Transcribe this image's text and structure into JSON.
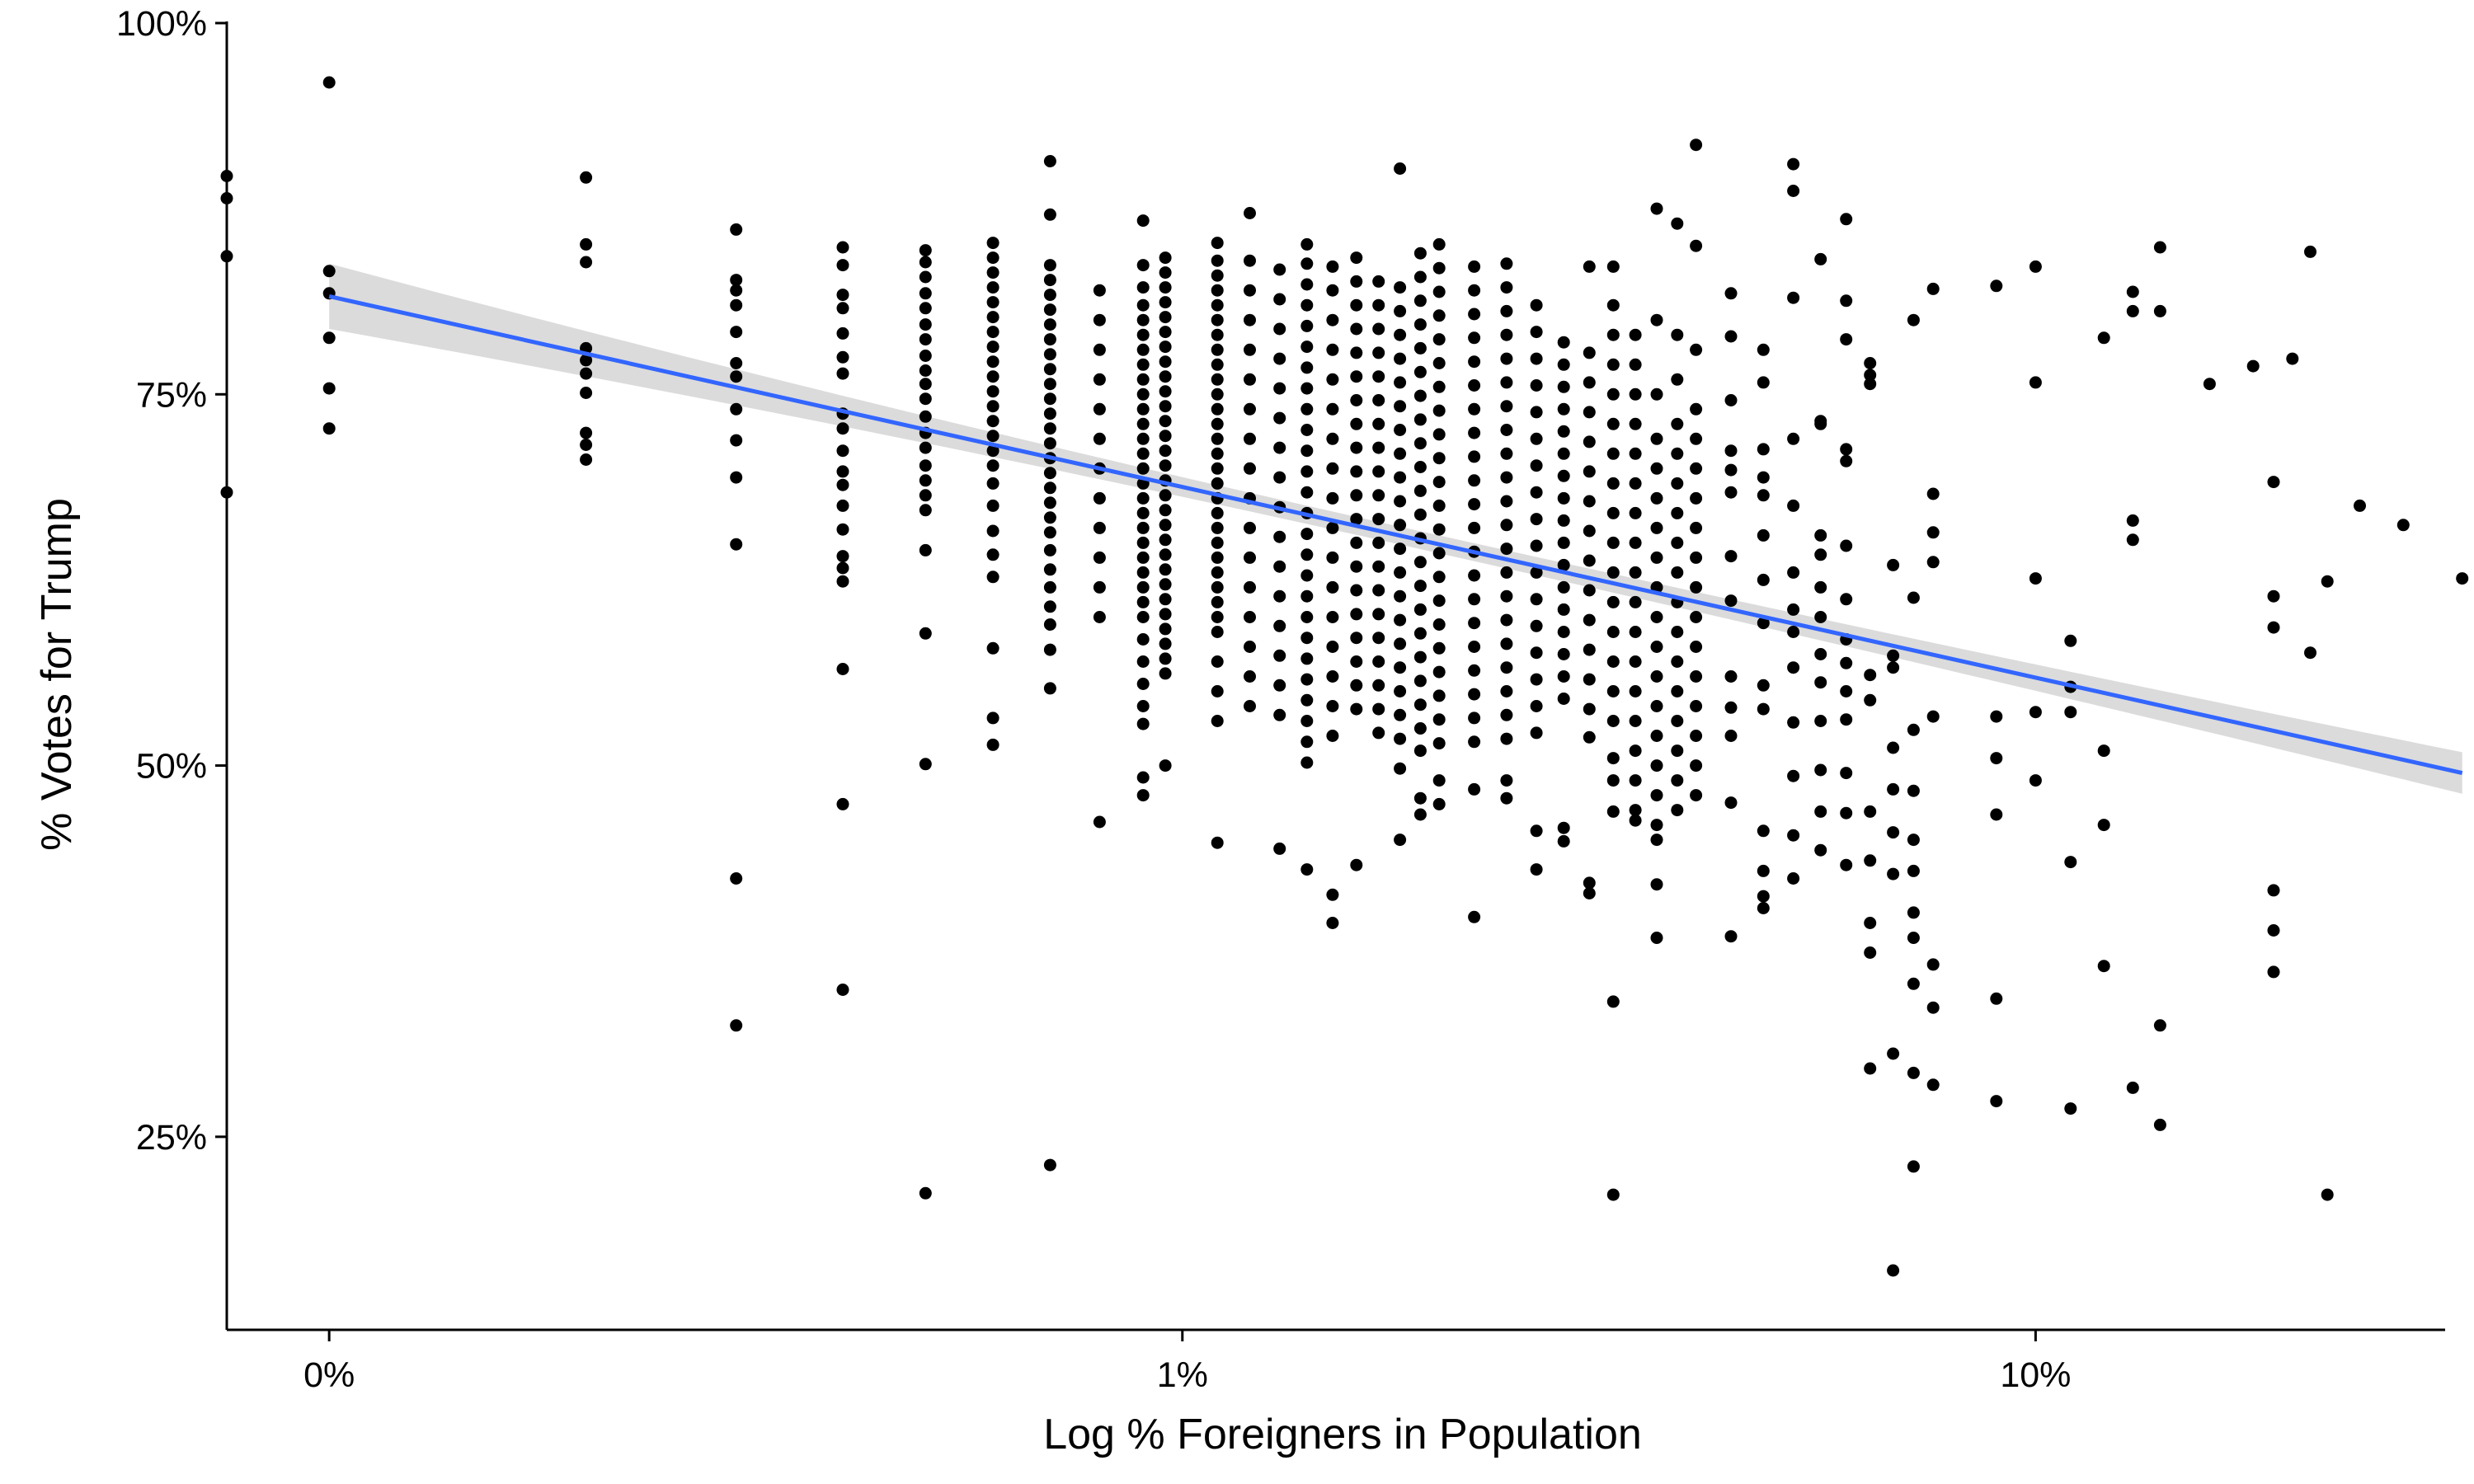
{
  "chart_data": {
    "type": "scatter",
    "title": "",
    "xlabel": "Log % Foreigners in Population",
    "ylabel": "% Votes for Trump",
    "x_scale": "log10",
    "x_domain": [
      -0.12,
      2.48
    ],
    "y_domain": [
      0.12,
      1.0
    ],
    "x_ticks": [
      {
        "value": 0,
        "label": "0%"
      },
      {
        "value": 1,
        "label": "1%"
      },
      {
        "value": 2,
        "label": "10%"
      }
    ],
    "y_ticks": [
      {
        "value": 0.25,
        "label": "25%"
      },
      {
        "value": 0.5,
        "label": "50%"
      },
      {
        "value": 0.75,
        "label": "75%"
      },
      {
        "value": 1.0,
        "label": "100%"
      }
    ],
    "grid": false,
    "legend": "none",
    "colors": {
      "points": "#000000",
      "trend_line": "#3366FF",
      "confidence_band": "#D9D9D9"
    },
    "trend": {
      "method": "linear",
      "x": [
        0.0,
        2.5
      ],
      "y": [
        0.816,
        0.495
      ],
      "ci_halfwidth_ends": [
        0.022,
        0.014
      ],
      "ci_halfwidth_mid": 0.006
    },
    "columns": [
      {
        "x": -0.12,
        "y": [
          0.897,
          0.882,
          0.843,
          0.684
        ]
      },
      {
        "x": 0.0,
        "y": [
          0.96,
          0.833,
          0.818,
          0.788,
          0.754,
          0.727
        ]
      },
      {
        "x": 0.301,
        "y": [
          0.896,
          0.851,
          0.839,
          0.781,
          0.773,
          0.764,
          0.751,
          0.724,
          0.716,
          0.706
        ]
      },
      {
        "x": 0.477,
        "y": [
          0.861,
          0.827,
          0.82,
          0.81,
          0.792,
          0.771,
          0.762,
          0.74,
          0.719,
          0.694,
          0.649,
          0.424,
          0.325
        ]
      },
      {
        "x": 0.602,
        "y": [
          0.849,
          0.837,
          0.817,
          0.808,
          0.791,
          0.775,
          0.764,
          0.737,
          0.727,
          0.712,
          0.698,
          0.689,
          0.675,
          0.659,
          0.641,
          0.633,
          0.624,
          0.565,
          0.474,
          0.349
        ]
      },
      {
        "x": 0.699,
        "y": [
          0.847,
          0.839,
          0.829,
          0.818,
          0.808,
          0.797,
          0.787,
          0.776,
          0.766,
          0.757,
          0.747,
          0.735,
          0.724,
          0.714,
          0.702,
          0.692,
          0.682,
          0.672,
          0.645,
          0.589,
          0.501,
          0.212
        ]
      },
      {
        "x": 0.778,
        "y": [
          0.852,
          0.842,
          0.832,
          0.822,
          0.812,
          0.802,
          0.792,
          0.782,
          0.772,
          0.762,
          0.752,
          0.742,
          0.732,
          0.722,
          0.712,
          0.702,
          0.69,
          0.675,
          0.658,
          0.642,
          0.627,
          0.579,
          0.532,
          0.514
        ]
      },
      {
        "x": 0.845,
        "y": [
          0.907,
          0.871,
          0.837,
          0.827,
          0.817,
          0.807,
          0.797,
          0.787,
          0.777,
          0.767,
          0.757,
          0.747,
          0.737,
          0.727,
          0.717,
          0.707,
          0.697,
          0.687,
          0.677,
          0.667,
          0.657,
          0.645,
          0.632,
          0.62,
          0.607,
          0.595,
          0.578,
          0.552,
          0.231
        ]
      },
      {
        "x": 0.903,
        "y": [
          0.82,
          0.8,
          0.78,
          0.76,
          0.74,
          0.72,
          0.7,
          0.68,
          0.66,
          0.64,
          0.62,
          0.6,
          0.462
        ]
      },
      {
        "x": 0.954,
        "y": [
          0.867,
          0.837,
          0.822,
          0.81,
          0.8,
          0.79,
          0.78,
          0.77,
          0.76,
          0.75,
          0.74,
          0.73,
          0.72,
          0.71,
          0.7,
          0.69,
          0.68,
          0.67,
          0.66,
          0.65,
          0.64,
          0.63,
          0.62,
          0.61,
          0.6,
          0.585,
          0.57,
          0.555,
          0.54,
          0.528,
          0.492,
          0.48
        ]
      },
      {
        "x": 0.98,
        "y": [
          0.842,
          0.832,
          0.822,
          0.812,
          0.802,
          0.792,
          0.782,
          0.772,
          0.762,
          0.752,
          0.742,
          0.732,
          0.722,
          0.712,
          0.702,
          0.692,
          0.682,
          0.672,
          0.662,
          0.652,
          0.642,
          0.632,
          0.622,
          0.612,
          0.602,
          0.592,
          0.582,
          0.572,
          0.562,
          0.5
        ]
      },
      {
        "x": 1.041,
        "y": [
          0.852,
          0.84,
          0.83,
          0.82,
          0.81,
          0.8,
          0.79,
          0.78,
          0.77,
          0.76,
          0.75,
          0.74,
          0.73,
          0.72,
          0.71,
          0.7,
          0.69,
          0.68,
          0.67,
          0.66,
          0.65,
          0.64,
          0.63,
          0.62,
          0.61,
          0.6,
          0.59,
          0.57,
          0.55,
          0.53,
          0.448
        ]
      },
      {
        "x": 1.079,
        "y": [
          0.872,
          0.84,
          0.82,
          0.8,
          0.78,
          0.76,
          0.74,
          0.72,
          0.7,
          0.68,
          0.66,
          0.64,
          0.62,
          0.6,
          0.58,
          0.56,
          0.54
        ]
      },
      {
        "x": 1.114,
        "y": [
          0.834,
          0.814,
          0.794,
          0.774,
          0.754,
          0.734,
          0.714,
          0.694,
          0.674,
          0.654,
          0.634,
          0.614,
          0.594,
          0.574,
          0.554,
          0.534,
          0.444
        ]
      },
      {
        "x": 1.146,
        "y": [
          0.851,
          0.838,
          0.824,
          0.81,
          0.796,
          0.782,
          0.768,
          0.754,
          0.74,
          0.726,
          0.712,
          0.698,
          0.684,
          0.67,
          0.656,
          0.642,
          0.628,
          0.614,
          0.6,
          0.586,
          0.572,
          0.558,
          0.544,
          0.53,
          0.516,
          0.502,
          0.43
        ]
      },
      {
        "x": 1.176,
        "y": [
          0.836,
          0.82,
          0.8,
          0.78,
          0.76,
          0.74,
          0.72,
          0.7,
          0.68,
          0.66,
          0.64,
          0.62,
          0.6,
          0.58,
          0.56,
          0.54,
          0.52,
          0.413,
          0.394
        ]
      },
      {
        "x": 1.204,
        "y": [
          0.842,
          0.826,
          0.81,
          0.794,
          0.778,
          0.762,
          0.746,
          0.73,
          0.714,
          0.698,
          0.682,
          0.666,
          0.65,
          0.634,
          0.618,
          0.602,
          0.586,
          0.57,
          0.554,
          0.538,
          0.433
        ]
      },
      {
        "x": 1.23,
        "y": [
          0.826,
          0.81,
          0.794,
          0.778,
          0.762,
          0.746,
          0.73,
          0.714,
          0.698,
          0.682,
          0.666,
          0.65,
          0.634,
          0.618,
          0.602,
          0.586,
          0.57,
          0.554,
          0.538,
          0.522
        ]
      },
      {
        "x": 1.255,
        "y": [
          0.902,
          0.822,
          0.806,
          0.79,
          0.774,
          0.758,
          0.742,
          0.726,
          0.71,
          0.694,
          0.678,
          0.662,
          0.646,
          0.63,
          0.614,
          0.598,
          0.582,
          0.566,
          0.55,
          0.534,
          0.518,
          0.498,
          0.45
        ]
      },
      {
        "x": 1.279,
        "y": [
          0.845,
          0.829,
          0.813,
          0.797,
          0.781,
          0.765,
          0.749,
          0.733,
          0.717,
          0.701,
          0.685,
          0.669,
          0.653,
          0.637,
          0.621,
          0.605,
          0.589,
          0.573,
          0.557,
          0.541,
          0.525,
          0.51,
          0.478,
          0.467
        ]
      },
      {
        "x": 1.301,
        "y": [
          0.851,
          0.835,
          0.819,
          0.803,
          0.787,
          0.771,
          0.755,
          0.739,
          0.723,
          0.707,
          0.691,
          0.675,
          0.659,
          0.643,
          0.627,
          0.611,
          0.595,
          0.579,
          0.563,
          0.547,
          0.531,
          0.515,
          0.49,
          0.474
        ]
      },
      {
        "x": 1.342,
        "y": [
          0.836,
          0.82,
          0.804,
          0.788,
          0.772,
          0.756,
          0.74,
          0.724,
          0.708,
          0.692,
          0.676,
          0.66,
          0.644,
          0.628,
          0.612,
          0.596,
          0.58,
          0.564,
          0.548,
          0.532,
          0.516,
          0.484,
          0.398
        ]
      },
      {
        "x": 1.38,
        "y": [
          0.838,
          0.822,
          0.806,
          0.79,
          0.774,
          0.758,
          0.742,
          0.726,
          0.71,
          0.694,
          0.678,
          0.662,
          0.646,
          0.63,
          0.614,
          0.598,
          0.582,
          0.566,
          0.55,
          0.534,
          0.518,
          0.49,
          0.478
        ]
      },
      {
        "x": 1.415,
        "y": [
          0.81,
          0.792,
          0.774,
          0.756,
          0.738,
          0.72,
          0.702,
          0.684,
          0.666,
          0.648,
          0.63,
          0.612,
          0.594,
          0.576,
          0.558,
          0.54,
          0.522,
          0.456,
          0.43
        ]
      },
      {
        "x": 1.447,
        "y": [
          0.785,
          0.77,
          0.755,
          0.74,
          0.725,
          0.71,
          0.695,
          0.68,
          0.665,
          0.65,
          0.635,
          0.62,
          0.605,
          0.59,
          0.575,
          0.56,
          0.545,
          0.458,
          0.449
        ]
      },
      {
        "x": 1.477,
        "y": [
          0.836,
          0.778,
          0.758,
          0.738,
          0.718,
          0.698,
          0.678,
          0.658,
          0.638,
          0.618,
          0.598,
          0.578,
          0.558,
          0.538,
          0.519,
          0.421,
          0.414
        ]
      },
      {
        "x": 1.505,
        "y": [
          0.836,
          0.81,
          0.79,
          0.77,
          0.75,
          0.73,
          0.71,
          0.69,
          0.67,
          0.65,
          0.63,
          0.61,
          0.59,
          0.57,
          0.55,
          0.53,
          0.505,
          0.49,
          0.469,
          0.341,
          0.211
        ]
      },
      {
        "x": 1.531,
        "y": [
          0.79,
          0.77,
          0.75,
          0.73,
          0.71,
          0.69,
          0.67,
          0.65,
          0.63,
          0.61,
          0.59,
          0.57,
          0.55,
          0.53,
          0.51,
          0.49,
          0.47,
          0.463
        ]
      },
      {
        "x": 1.556,
        "y": [
          0.875,
          0.8,
          0.75,
          0.72,
          0.7,
          0.68,
          0.66,
          0.64,
          0.62,
          0.6,
          0.58,
          0.56,
          0.54,
          0.52,
          0.5,
          0.48,
          0.46,
          0.45,
          0.42,
          0.384
        ]
      },
      {
        "x": 1.58,
        "y": [
          0.865,
          0.79,
          0.76,
          0.73,
          0.71,
          0.69,
          0.67,
          0.65,
          0.63,
          0.61,
          0.59,
          0.57,
          0.55,
          0.53,
          0.51,
          0.49,
          0.47
        ]
      },
      {
        "x": 1.602,
        "y": [
          0.918,
          0.85,
          0.78,
          0.74,
          0.72,
          0.7,
          0.68,
          0.66,
          0.64,
          0.62,
          0.6,
          0.58,
          0.56,
          0.54,
          0.52,
          0.5,
          0.48
        ]
      },
      {
        "x": 1.643,
        "y": [
          0.818,
          0.789,
          0.746,
          0.712,
          0.699,
          0.684,
          0.641,
          0.611,
          0.56,
          0.539,
          0.52,
          0.475,
          0.385
        ]
      },
      {
        "x": 1.681,
        "y": [
          0.78,
          0.758,
          0.713,
          0.694,
          0.682,
          0.655,
          0.625,
          0.596,
          0.554,
          0.538,
          0.456,
          0.429,
          0.412,
          0.404
        ]
      },
      {
        "x": 1.716,
        "y": [
          0.887,
          0.905,
          0.815,
          0.72,
          0.675,
          0.63,
          0.605,
          0.59,
          0.566,
          0.529,
          0.493,
          0.453,
          0.424
        ]
      },
      {
        "x": 1.748,
        "y": [
          0.841,
          0.732,
          0.73,
          0.655,
          0.642,
          0.62,
          0.6,
          0.575,
          0.556,
          0.53,
          0.497,
          0.469,
          0.443
        ]
      },
      {
        "x": 1.778,
        "y": [
          0.868,
          0.813,
          0.787,
          0.713,
          0.705,
          0.648,
          0.612,
          0.585,
          0.569,
          0.55,
          0.531,
          0.495,
          0.468,
          0.433
        ]
      },
      {
        "x": 1.806,
        "y": [
          0.771,
          0.757,
          0.763,
          0.561,
          0.544,
          0.469,
          0.436,
          0.394,
          0.374,
          0.296
        ]
      },
      {
        "x": 1.833,
        "y": [
          0.635,
          0.574,
          0.566,
          0.512,
          0.484,
          0.455,
          0.427,
          0.306,
          0.16
        ]
      },
      {
        "x": 1.857,
        "y": [
          0.8,
          0.613,
          0.524,
          0.483,
          0.45,
          0.429,
          0.401,
          0.384,
          0.353,
          0.293,
          0.23
        ]
      },
      {
        "x": 1.88,
        "y": [
          0.821,
          0.683,
          0.657,
          0.637,
          0.533,
          0.366,
          0.337,
          0.285
        ]
      },
      {
        "x": 1.954,
        "y": [
          0.823,
          0.533,
          0.505,
          0.467,
          0.343,
          0.274
        ]
      },
      {
        "x": 2.0,
        "y": [
          0.836,
          0.758,
          0.626,
          0.536,
          0.49
        ]
      },
      {
        "x": 2.041,
        "y": [
          0.584,
          0.553,
          0.536,
          0.435,
          0.269
        ]
      },
      {
        "x": 2.08,
        "y": [
          0.788,
          0.51,
          0.46,
          0.365
        ]
      },
      {
        "x": 2.114,
        "y": [
          0.819,
          0.806,
          0.665,
          0.652,
          0.283
        ]
      },
      {
        "x": 2.146,
        "y": [
          0.849,
          0.806,
          0.325,
          0.258
        ]
      },
      {
        "x": 2.204,
        "y": [
          0.757
        ]
      },
      {
        "x": 2.255,
        "y": [
          0.769
        ]
      },
      {
        "x": 2.279,
        "y": [
          0.691,
          0.614,
          0.593,
          0.416,
          0.389,
          0.361
        ]
      },
      {
        "x": 2.301,
        "y": [
          0.774
        ]
      },
      {
        "x": 2.322,
        "y": [
          0.846,
          0.576
        ]
      },
      {
        "x": 2.342,
        "y": [
          0.624,
          0.211
        ]
      },
      {
        "x": 2.38,
        "y": [
          0.675
        ]
      },
      {
        "x": 2.431,
        "y": [
          0.662
        ]
      },
      {
        "x": 2.5,
        "y": [
          0.626
        ]
      }
    ]
  }
}
